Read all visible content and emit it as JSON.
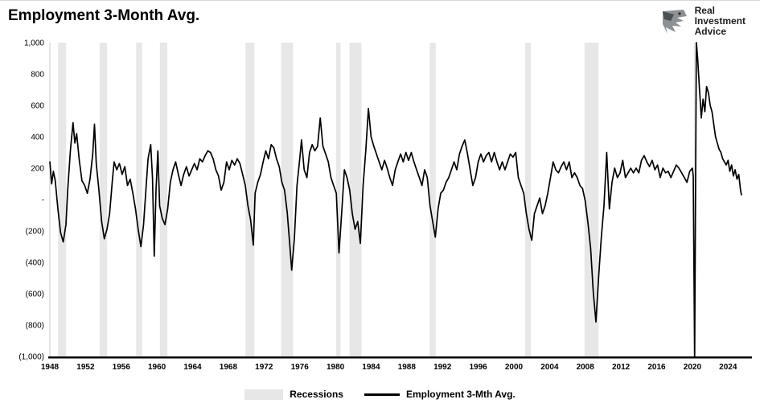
{
  "header": {
    "title": "Employment 3-Month Avg.",
    "logo": {
      "line1": "Real",
      "line2": "Investment",
      "line3": "Advice"
    }
  },
  "legend": {
    "items": [
      {
        "label": "Recessions",
        "color": "#e7e7e7",
        "type": "band"
      },
      {
        "label": "Employment 3-Mth Avg.",
        "color": "#000000",
        "type": "line"
      }
    ]
  },
  "chart_data": {
    "type": "line",
    "title": "Employment 3-Month Avg.",
    "xlabel": "",
    "ylabel": "",
    "xlim": [
      1948,
      2026.5
    ],
    "ylim": [
      -1000,
      1000
    ],
    "grid": false,
    "legend_position": "bottom-center",
    "recession_color": "#e7e7e7",
    "x_ticks": [
      1948,
      1952,
      1956,
      1960,
      1964,
      1968,
      1972,
      1976,
      1980,
      1984,
      1988,
      1992,
      1996,
      2000,
      2004,
      2008,
      2012,
      2016,
      2020,
      2024
    ],
    "y_ticks": [
      {
        "value": 1000,
        "label": "1,000"
      },
      {
        "value": 800,
        "label": "800"
      },
      {
        "value": 600,
        "label": "600"
      },
      {
        "value": 400,
        "label": "400"
      },
      {
        "value": 200,
        "label": "200"
      },
      {
        "value": 0,
        "label": "-"
      },
      {
        "value": -200,
        "label": "(200)"
      },
      {
        "value": -400,
        "label": "(400)"
      },
      {
        "value": -600,
        "label": "(600)"
      },
      {
        "value": -800,
        "label": "(800)"
      },
      {
        "value": -1000,
        "label": "(1,000)"
      }
    ],
    "recessions": [
      [
        1948.92,
        1949.83
      ],
      [
        1953.58,
        1954.42
      ],
      [
        1957.67,
        1958.33
      ],
      [
        1960.33,
        1961.17
      ],
      [
        1969.92,
        1970.92
      ],
      [
        1973.92,
        1975.25
      ],
      [
        1980.08,
        1980.58
      ],
      [
        1981.58,
        1982.92
      ],
      [
        1990.58,
        1991.25
      ],
      [
        2001.25,
        2001.92
      ],
      [
        2007.92,
        2009.5
      ],
      [
        2020.17,
        2020.42
      ]
    ],
    "series": [
      {
        "name": "Employment 3-Mth Avg.",
        "color": "#000000",
        "points": [
          [
            1948.0,
            240
          ],
          [
            1948.2,
            100
          ],
          [
            1948.4,
            180
          ],
          [
            1948.6,
            120
          ],
          [
            1948.9,
            -60
          ],
          [
            1949.2,
            -210
          ],
          [
            1949.5,
            -270
          ],
          [
            1949.8,
            -160
          ],
          [
            1950.0,
            60
          ],
          [
            1950.3,
            310
          ],
          [
            1950.6,
            490
          ],
          [
            1950.8,
            360
          ],
          [
            1951.0,
            420
          ],
          [
            1951.3,
            250
          ],
          [
            1951.6,
            120
          ],
          [
            1951.9,
            90
          ],
          [
            1952.2,
            40
          ],
          [
            1952.5,
            130
          ],
          [
            1952.8,
            290
          ],
          [
            1953.0,
            480
          ],
          [
            1953.2,
            230
          ],
          [
            1953.5,
            60
          ],
          [
            1953.8,
            -140
          ],
          [
            1954.1,
            -250
          ],
          [
            1954.4,
            -190
          ],
          [
            1954.7,
            -90
          ],
          [
            1955.0,
            120
          ],
          [
            1955.2,
            240
          ],
          [
            1955.5,
            190
          ],
          [
            1955.8,
            230
          ],
          [
            1956.1,
            160
          ],
          [
            1956.4,
            210
          ],
          [
            1956.7,
            90
          ],
          [
            1957.0,
            130
          ],
          [
            1957.3,
            40
          ],
          [
            1957.6,
            -60
          ],
          [
            1957.9,
            -190
          ],
          [
            1958.2,
            -300
          ],
          [
            1958.5,
            -160
          ],
          [
            1958.8,
            90
          ],
          [
            1959.0,
            260
          ],
          [
            1959.3,
            350
          ],
          [
            1959.5,
            140
          ],
          [
            1959.7,
            -360
          ],
          [
            1959.9,
            60
          ],
          [
            1960.1,
            310
          ],
          [
            1960.3,
            -40
          ],
          [
            1960.6,
            -120
          ],
          [
            1960.9,
            -160
          ],
          [
            1961.2,
            -60
          ],
          [
            1961.5,
            110
          ],
          [
            1961.8,
            190
          ],
          [
            1962.1,
            240
          ],
          [
            1962.4,
            160
          ],
          [
            1962.7,
            90
          ],
          [
            1963.0,
            160
          ],
          [
            1963.3,
            210
          ],
          [
            1963.6,
            150
          ],
          [
            1963.9,
            190
          ],
          [
            1964.2,
            230
          ],
          [
            1964.5,
            190
          ],
          [
            1964.8,
            260
          ],
          [
            1965.1,
            240
          ],
          [
            1965.4,
            280
          ],
          [
            1965.7,
            310
          ],
          [
            1966.0,
            300
          ],
          [
            1966.3,
            260
          ],
          [
            1966.6,
            190
          ],
          [
            1966.9,
            150
          ],
          [
            1967.2,
            60
          ],
          [
            1967.5,
            110
          ],
          [
            1967.8,
            240
          ],
          [
            1968.1,
            190
          ],
          [
            1968.4,
            250
          ],
          [
            1968.7,
            220
          ],
          [
            1969.0,
            260
          ],
          [
            1969.3,
            230
          ],
          [
            1969.6,
            160
          ],
          [
            1969.9,
            90
          ],
          [
            1970.2,
            -40
          ],
          [
            1970.5,
            -130
          ],
          [
            1970.8,
            -290
          ],
          [
            1971.0,
            40
          ],
          [
            1971.3,
            110
          ],
          [
            1971.6,
            160
          ],
          [
            1971.9,
            240
          ],
          [
            1972.2,
            310
          ],
          [
            1972.5,
            260
          ],
          [
            1972.8,
            350
          ],
          [
            1973.1,
            330
          ],
          [
            1973.4,
            260
          ],
          [
            1973.7,
            210
          ],
          [
            1974.0,
            110
          ],
          [
            1974.3,
            60
          ],
          [
            1974.6,
            -80
          ],
          [
            1974.9,
            -300
          ],
          [
            1975.1,
            -450
          ],
          [
            1975.4,
            -250
          ],
          [
            1975.7,
            90
          ],
          [
            1976.0,
            260
          ],
          [
            1976.2,
            380
          ],
          [
            1976.5,
            190
          ],
          [
            1976.8,
            140
          ],
          [
            1977.1,
            300
          ],
          [
            1977.4,
            350
          ],
          [
            1977.7,
            310
          ],
          [
            1978.0,
            340
          ],
          [
            1978.3,
            520
          ],
          [
            1978.6,
            340
          ],
          [
            1978.9,
            290
          ],
          [
            1979.2,
            240
          ],
          [
            1979.5,
            140
          ],
          [
            1979.8,
            90
          ],
          [
            1980.1,
            40
          ],
          [
            1980.4,
            -340
          ],
          [
            1980.7,
            -90
          ],
          [
            1981.0,
            190
          ],
          [
            1981.3,
            140
          ],
          [
            1981.6,
            60
          ],
          [
            1981.9,
            -90
          ],
          [
            1982.2,
            -190
          ],
          [
            1982.5,
            -140
          ],
          [
            1982.8,
            -280
          ],
          [
            1983.1,
            90
          ],
          [
            1983.4,
            310
          ],
          [
            1983.7,
            580
          ],
          [
            1984.0,
            400
          ],
          [
            1984.3,
            340
          ],
          [
            1984.6,
            290
          ],
          [
            1984.9,
            240
          ],
          [
            1985.2,
            190
          ],
          [
            1985.5,
            250
          ],
          [
            1985.8,
            200
          ],
          [
            1986.1,
            140
          ],
          [
            1986.4,
            90
          ],
          [
            1986.7,
            190
          ],
          [
            1987.0,
            240
          ],
          [
            1987.3,
            290
          ],
          [
            1987.6,
            240
          ],
          [
            1987.9,
            300
          ],
          [
            1988.2,
            250
          ],
          [
            1988.5,
            300
          ],
          [
            1988.8,
            240
          ],
          [
            1989.1,
            190
          ],
          [
            1989.4,
            140
          ],
          [
            1989.7,
            90
          ],
          [
            1990.0,
            190
          ],
          [
            1990.3,
            140
          ],
          [
            1990.6,
            -40
          ],
          [
            1990.9,
            -140
          ],
          [
            1991.2,
            -240
          ],
          [
            1991.5,
            -60
          ],
          [
            1991.8,
            40
          ],
          [
            1992.1,
            60
          ],
          [
            1992.4,
            110
          ],
          [
            1992.7,
            140
          ],
          [
            1993.0,
            190
          ],
          [
            1993.3,
            240
          ],
          [
            1993.6,
            190
          ],
          [
            1993.9,
            290
          ],
          [
            1994.2,
            340
          ],
          [
            1994.5,
            380
          ],
          [
            1994.8,
            290
          ],
          [
            1995.1,
            190
          ],
          [
            1995.4,
            90
          ],
          [
            1995.7,
            140
          ],
          [
            1996.0,
            240
          ],
          [
            1996.3,
            290
          ],
          [
            1996.6,
            240
          ],
          [
            1996.9,
            280
          ],
          [
            1997.2,
            300
          ],
          [
            1997.5,
            240
          ],
          [
            1997.8,
            300
          ],
          [
            1998.1,
            240
          ],
          [
            1998.4,
            190
          ],
          [
            1998.7,
            240
          ],
          [
            1999.0,
            190
          ],
          [
            1999.3,
            240
          ],
          [
            1999.6,
            290
          ],
          [
            1999.9,
            270
          ],
          [
            2000.2,
            300
          ],
          [
            2000.5,
            140
          ],
          [
            2000.8,
            90
          ],
          [
            2001.1,
            40
          ],
          [
            2001.4,
            -90
          ],
          [
            2001.7,
            -190
          ],
          [
            2002.0,
            -260
          ],
          [
            2002.3,
            -90
          ],
          [
            2002.6,
            -40
          ],
          [
            2002.9,
            10
          ],
          [
            2003.2,
            -90
          ],
          [
            2003.5,
            -40
          ],
          [
            2003.8,
            40
          ],
          [
            2004.1,
            140
          ],
          [
            2004.4,
            240
          ],
          [
            2004.7,
            190
          ],
          [
            2005.0,
            170
          ],
          [
            2005.3,
            210
          ],
          [
            2005.6,
            240
          ],
          [
            2005.9,
            190
          ],
          [
            2006.2,
            240
          ],
          [
            2006.5,
            140
          ],
          [
            2006.8,
            170
          ],
          [
            2007.1,
            140
          ],
          [
            2007.4,
            90
          ],
          [
            2007.7,
            70
          ],
          [
            2008.0,
            -10
          ],
          [
            2008.3,
            -150
          ],
          [
            2008.6,
            -310
          ],
          [
            2008.9,
            -590
          ],
          [
            2009.2,
            -780
          ],
          [
            2009.5,
            -490
          ],
          [
            2009.8,
            -240
          ],
          [
            2010.1,
            -40
          ],
          [
            2010.4,
            300
          ],
          [
            2010.7,
            -60
          ],
          [
            2011.0,
            110
          ],
          [
            2011.3,
            200
          ],
          [
            2011.6,
            140
          ],
          [
            2011.9,
            170
          ],
          [
            2012.2,
            250
          ],
          [
            2012.5,
            140
          ],
          [
            2012.8,
            170
          ],
          [
            2013.1,
            200
          ],
          [
            2013.4,
            170
          ],
          [
            2013.7,
            200
          ],
          [
            2014.0,
            170
          ],
          [
            2014.3,
            250
          ],
          [
            2014.6,
            280
          ],
          [
            2014.9,
            240
          ],
          [
            2015.2,
            210
          ],
          [
            2015.5,
            250
          ],
          [
            2015.8,
            190
          ],
          [
            2016.1,
            220
          ],
          [
            2016.4,
            140
          ],
          [
            2016.7,
            200
          ],
          [
            2017.0,
            170
          ],
          [
            2017.3,
            180
          ],
          [
            2017.6,
            140
          ],
          [
            2017.9,
            180
          ],
          [
            2018.2,
            220
          ],
          [
            2018.5,
            200
          ],
          [
            2018.8,
            170
          ],
          [
            2019.1,
            140
          ],
          [
            2019.4,
            110
          ],
          [
            2019.7,
            180
          ],
          [
            2020.0,
            200
          ],
          [
            2020.1,
            150
          ],
          [
            2020.25,
            -4000
          ],
          [
            2020.45,
            1500
          ],
          [
            2020.6,
            900
          ],
          [
            2020.8,
            700
          ],
          [
            2021.0,
            520
          ],
          [
            2021.2,
            640
          ],
          [
            2021.4,
            560
          ],
          [
            2021.6,
            720
          ],
          [
            2021.8,
            680
          ],
          [
            2022.0,
            600
          ],
          [
            2022.2,
            560
          ],
          [
            2022.4,
            480
          ],
          [
            2022.6,
            400
          ],
          [
            2022.8,
            360
          ],
          [
            2023.0,
            320
          ],
          [
            2023.2,
            300
          ],
          [
            2023.4,
            260
          ],
          [
            2023.6,
            240
          ],
          [
            2023.8,
            220
          ],
          [
            2024.0,
            250
          ],
          [
            2024.2,
            180
          ],
          [
            2024.4,
            220
          ],
          [
            2024.6,
            150
          ],
          [
            2024.8,
            190
          ],
          [
            2025.0,
            130
          ],
          [
            2025.2,
            160
          ],
          [
            2025.4,
            60
          ],
          [
            2025.5,
            30
          ]
        ]
      }
    ]
  }
}
